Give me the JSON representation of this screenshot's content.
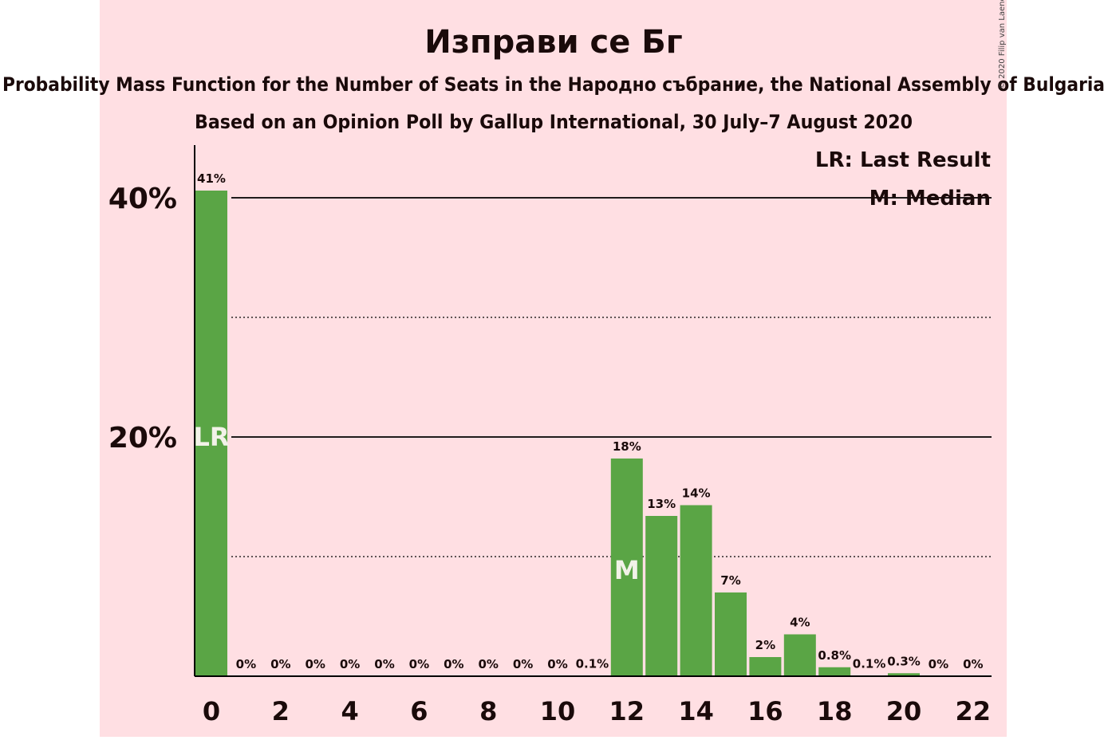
{
  "chart_data": {
    "type": "bar",
    "title": "Изправи се Бг",
    "subtitle": "Probability Mass Function for the Number of Seats in the Народно събрание, the National Assembly of Bulgaria",
    "source_line": "Based on an Opinion Poll by Gallup International, 30 July–7 August 2020",
    "copyright": "© 2020 Filip van Laenen",
    "legend": [
      "LR: Last Result",
      "M: Median"
    ],
    "legend_position": "top-right",
    "x": [
      0,
      1,
      2,
      3,
      4,
      5,
      6,
      7,
      8,
      9,
      10,
      11,
      12,
      13,
      14,
      15,
      16,
      17,
      18,
      19,
      20,
      21,
      22
    ],
    "values": [
      40.6,
      0,
      0,
      0,
      0,
      0,
      0,
      0,
      0,
      0,
      0,
      0.05,
      18.2,
      13.4,
      14.3,
      7.0,
      1.6,
      3.5,
      0.75,
      0.05,
      0.25,
      0,
      0
    ],
    "data_labels": [
      "41%",
      "0%",
      "0%",
      "0%",
      "0%",
      "0%",
      "0%",
      "0%",
      "0%",
      "0%",
      "0%",
      "0.1%",
      "18%",
      "13%",
      "14%",
      "7%",
      "2%",
      "4%",
      "0.8%",
      "0.1%",
      "0.3%",
      "0%",
      "0%"
    ],
    "x_tick_labels": [
      "0",
      "2",
      "4",
      "6",
      "8",
      "10",
      "12",
      "14",
      "16",
      "18",
      "20",
      "22"
    ],
    "y_tick_labels": [
      "20%",
      "40%"
    ],
    "ylim": [
      0,
      44
    ],
    "last_result_seat": 0,
    "last_result_marker": "LR",
    "median_seat": 12,
    "median_marker": "M",
    "grid": true,
    "colors": {
      "bar": "#5aa545",
      "background_band": "#ffdfe3",
      "axis": "#000000"
    }
  }
}
